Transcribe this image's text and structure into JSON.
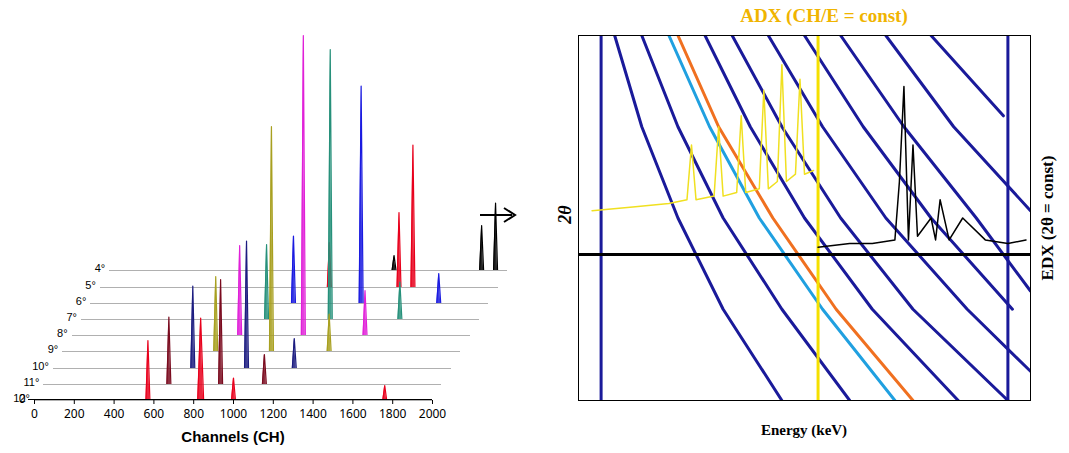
{
  "chart_data": [
    {
      "type": "area",
      "x_label": "Channels (CH)",
      "xlim": [
        0,
        2000
      ],
      "xticks": [
        0,
        200,
        400,
        600,
        800,
        1000,
        1200,
        1400,
        1600,
        1800,
        2000
      ],
      "ylim": [
        0,
        2.1
      ],
      "tick_labels": "x",
      "series": [
        {
          "name": "4°",
          "color": "#000000",
          "x": [
            0,
            1420,
            1430,
            1440,
            1860,
            1870,
            1880,
            1930,
            1940,
            1950,
            2000
          ],
          "values": [
            0,
            0,
            0.1,
            0,
            0,
            0.3,
            0,
            0,
            0.45,
            0,
            0
          ]
        },
        {
          "name": "5°",
          "color": "#e8001c",
          "x": [
            0,
            1140,
            1150,
            1160,
            1490,
            1500,
            1510,
            1560,
            1570,
            1580,
            2000
          ],
          "values": [
            0,
            0,
            0.3,
            0,
            0,
            0.5,
            0,
            0,
            0.95,
            0,
            0
          ]
        },
        {
          "name": "6°",
          "color": "#1a1ae0",
          "x": [
            0,
            1010,
            1020,
            1030,
            1350,
            1360,
            1370,
            1740,
            1750,
            1760,
            2000
          ],
          "values": [
            0,
            0,
            0.45,
            0,
            0,
            1.45,
            0,
            0,
            0.2,
            0,
            0
          ]
        },
        {
          "name": "7°",
          "color": "#26907a",
          "x": [
            0,
            920,
            930,
            940,
            1240,
            1250,
            1260,
            1590,
            1600,
            1610,
            2000
          ],
          "values": [
            0,
            0,
            0.5,
            0,
            0,
            1.8,
            0,
            0,
            0.25,
            0,
            0
          ]
        },
        {
          "name": "8°",
          "color": "#e020d8",
          "x": [
            0,
            830,
            840,
            850,
            1150,
            1160,
            1170,
            1460,
            1470,
            1480,
            2000
          ],
          "values": [
            0,
            0,
            0.6,
            0,
            0,
            2.0,
            0,
            0,
            0.3,
            0,
            0
          ]
        },
        {
          "name": "9°",
          "color": "#a8a020",
          "x": [
            0,
            760,
            770,
            780,
            1040,
            1050,
            1060,
            1330,
            1340,
            1350,
            2000
          ],
          "values": [
            0,
            0,
            0.5,
            0,
            0,
            1.5,
            0,
            0,
            0.25,
            0,
            0
          ]
        },
        {
          "name": "10°",
          "color": "#1c1c80",
          "x": [
            0,
            690,
            700,
            710,
            960,
            970,
            980,
            1200,
            1210,
            1220,
            2000
          ],
          "values": [
            0,
            0,
            0.55,
            0,
            0,
            0.85,
            0,
            0,
            0.2,
            0,
            0
          ]
        },
        {
          "name": "11°",
          "color": "#7a0a1e",
          "x": [
            0,
            620,
            630,
            640,
            880,
            890,
            900,
            1100,
            1110,
            1120,
            2000
          ],
          "values": [
            0,
            0,
            0.45,
            0,
            0,
            0.7,
            0,
            0,
            0.2,
            0,
            0
          ]
        },
        {
          "name": "12°",
          "color": "#e8001c",
          "x": [
            0,
            560,
            570,
            580,
            820,
            835,
            850,
            990,
            1000,
            1010,
            1750,
            1760,
            1770,
            2000
          ],
          "values": [
            0,
            0,
            0.4,
            0,
            0,
            0.55,
            0,
            0,
            0.15,
            0,
            0,
            0.1,
            0,
            0
          ]
        }
      ]
    },
    {
      "type": "line",
      "title": "ADX (CH/E = const)",
      "color": "#f0b400",
      "x_label": "Energy (keV)",
      "y_label": "2θ",
      "side_label": "EDX (2θ = const)",
      "xlim": [
        0,
        100
      ],
      "ylim": [
        0,
        100
      ],
      "tick_labels": false,
      "series": [
        {
          "color": "#1a1a9a",
          "x": [
            5,
            5
          ],
          "y": [
            0,
            100
          ]
        },
        {
          "color": "#1a1a9a",
          "x": [
            95,
            95
          ],
          "y": [
            0,
            100
          ]
        },
        {
          "color": "#1a1a9a",
          "x": [
            8,
            14,
            22,
            32,
            45
          ],
          "y": [
            100,
            75,
            50,
            25,
            0
          ]
        },
        {
          "color": "#1a1a9a",
          "x": [
            14,
            22,
            32,
            45,
            60
          ],
          "y": [
            100,
            75,
            50,
            25,
            0
          ]
        },
        {
          "color": "#20a0e0",
          "x": [
            20,
            29,
            40,
            54,
            70
          ],
          "y": [
            100,
            75,
            50,
            25,
            0
          ]
        },
        {
          "color": "#f07020",
          "x": [
            22,
            31,
            43,
            57,
            74
          ],
          "y": [
            100,
            75,
            50,
            25,
            0
          ]
        },
        {
          "color": "#1a1a9a",
          "x": [
            28,
            38,
            50,
            65,
            84
          ],
          "y": [
            100,
            75,
            50,
            25,
            0
          ]
        },
        {
          "color": "#1a1a9a",
          "x": [
            34,
            45,
            58,
            74,
            95
          ],
          "y": [
            100,
            75,
            50,
            25,
            0
          ]
        },
        {
          "color": "#1a1a9a",
          "x": [
            42,
            54,
            68,
            86,
            100
          ],
          "y": [
            100,
            75,
            50,
            25,
            8
          ]
        },
        {
          "color": "#1a1a9a",
          "x": [
            50,
            63,
            78,
            96
          ],
          "y": [
            100,
            75,
            50,
            25
          ]
        },
        {
          "color": "#1a1a9a",
          "x": [
            58,
            72,
            88,
            100
          ],
          "y": [
            100,
            75,
            50,
            30
          ]
        },
        {
          "color": "#1a1a9a",
          "x": [
            68,
            83,
            100
          ],
          "y": [
            100,
            75,
            52
          ]
        },
        {
          "color": "#1a1a9a",
          "x": [
            78,
            94
          ],
          "y": [
            100,
            78
          ]
        },
        {
          "color": "#f5e000",
          "x": [
            53,
            53
          ],
          "y": [
            0,
            100
          ]
        },
        {
          "color": "#000000",
          "x": [
            0,
            100
          ],
          "y": [
            40,
            40
          ]
        },
        {
          "color": "#f0e020",
          "x": [
            3,
            12,
            20,
            24,
            25,
            26,
            30,
            31,
            32,
            35,
            36,
            37,
            40,
            41,
            42,
            44,
            45,
            46,
            48,
            49,
            50,
            52
          ],
          "y": [
            52,
            53,
            54,
            55,
            70,
            55,
            56,
            75,
            56,
            57,
            78,
            57,
            58,
            85,
            58,
            60,
            92,
            60,
            62,
            88,
            62,
            63
          ]
        },
        {
          "color": "#000000",
          "x": [
            53,
            60,
            65,
            70,
            71,
            72,
            73,
            74,
            75,
            78,
            79,
            80,
            82,
            85,
            90,
            95,
            99
          ],
          "y": [
            42,
            43,
            43,
            44,
            60,
            86,
            44,
            70,
            45,
            50,
            44,
            55,
            44,
            50,
            44,
            43,
            44
          ]
        }
      ]
    }
  ]
}
